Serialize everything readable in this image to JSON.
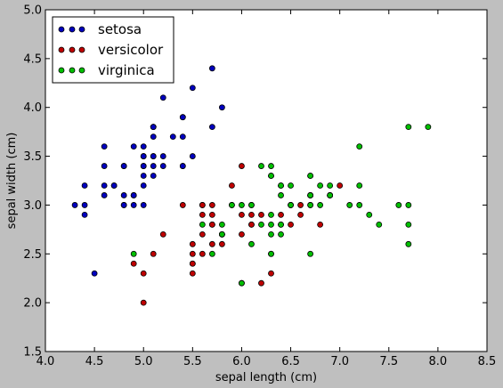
{
  "chart_data": {
    "type": "scatter",
    "title": "",
    "xlabel": "sepal length (cm)",
    "ylabel": "sepal width (cm)",
    "xlim": [
      4.0,
      8.5
    ],
    "ylim": [
      1.5,
      5.0
    ],
    "xticks": [
      4.0,
      4.5,
      5.0,
      5.5,
      6.0,
      6.5,
      7.0,
      7.5,
      8.0,
      8.5
    ],
    "yticks": [
      1.5,
      2.0,
      2.5,
      3.0,
      3.5,
      4.0,
      4.5,
      5.0
    ],
    "xtick_labels": [
      "4.0",
      "4.5",
      "5.0",
      "5.5",
      "6.0",
      "6.5",
      "7.0",
      "7.5",
      "8.0",
      "8.5"
    ],
    "ytick_labels": [
      "1.5",
      "2.0",
      "2.5",
      "3.0",
      "3.5",
      "4.0",
      "4.5",
      "5.0"
    ],
    "grid": false,
    "legend_position": "top-left",
    "series": [
      {
        "name": "setosa",
        "color": "#0000bf",
        "points": [
          [
            5.1,
            3.5
          ],
          [
            4.9,
            3.0
          ],
          [
            4.7,
            3.2
          ],
          [
            4.6,
            3.1
          ],
          [
            5.0,
            3.6
          ],
          [
            5.4,
            3.9
          ],
          [
            4.6,
            3.4
          ],
          [
            5.0,
            3.4
          ],
          [
            4.4,
            2.9
          ],
          [
            4.9,
            3.1
          ],
          [
            5.4,
            3.7
          ],
          [
            4.8,
            3.4
          ],
          [
            4.8,
            3.0
          ],
          [
            4.3,
            3.0
          ],
          [
            5.8,
            4.0
          ],
          [
            5.7,
            4.4
          ],
          [
            5.4,
            3.9
          ],
          [
            5.1,
            3.5
          ],
          [
            5.7,
            3.8
          ],
          [
            5.1,
            3.8
          ],
          [
            5.4,
            3.4
          ],
          [
            5.1,
            3.7
          ],
          [
            4.6,
            3.6
          ],
          [
            5.1,
            3.3
          ],
          [
            4.8,
            3.4
          ],
          [
            5.0,
            3.0
          ],
          [
            5.0,
            3.4
          ],
          [
            5.2,
            3.5
          ],
          [
            5.2,
            3.4
          ],
          [
            4.7,
            3.2
          ],
          [
            4.8,
            3.1
          ],
          [
            5.4,
            3.4
          ],
          [
            5.2,
            4.1
          ],
          [
            5.5,
            4.2
          ],
          [
            4.9,
            3.1
          ],
          [
            5.0,
            3.2
          ],
          [
            5.5,
            3.5
          ],
          [
            4.9,
            3.6
          ],
          [
            4.4,
            3.0
          ],
          [
            5.1,
            3.4
          ],
          [
            5.0,
            3.5
          ],
          [
            4.5,
            2.3
          ],
          [
            4.4,
            3.2
          ],
          [
            5.0,
            3.5
          ],
          [
            5.1,
            3.8
          ],
          [
            4.8,
            3.0
          ],
          [
            5.1,
            3.8
          ],
          [
            4.6,
            3.2
          ],
          [
            5.3,
            3.7
          ],
          [
            5.0,
            3.3
          ]
        ]
      },
      {
        "name": "versicolor",
        "color": "#bf0000",
        "points": [
          [
            7.0,
            3.2
          ],
          [
            6.4,
            3.2
          ],
          [
            6.9,
            3.1
          ],
          [
            5.5,
            2.3
          ],
          [
            6.5,
            2.8
          ],
          [
            5.7,
            2.8
          ],
          [
            6.3,
            3.3
          ],
          [
            4.9,
            2.4
          ],
          [
            6.6,
            2.9
          ],
          [
            5.2,
            2.7
          ],
          [
            5.0,
            2.0
          ],
          [
            5.9,
            3.0
          ],
          [
            6.0,
            2.2
          ],
          [
            6.1,
            2.9
          ],
          [
            5.6,
            2.9
          ],
          [
            6.7,
            3.1
          ],
          [
            5.6,
            3.0
          ],
          [
            5.8,
            2.7
          ],
          [
            6.2,
            2.2
          ],
          [
            5.6,
            2.5
          ],
          [
            5.9,
            3.2
          ],
          [
            6.1,
            2.8
          ],
          [
            6.3,
            2.5
          ],
          [
            6.1,
            2.8
          ],
          [
            6.4,
            2.9
          ],
          [
            6.6,
            3.0
          ],
          [
            6.8,
            2.8
          ],
          [
            6.7,
            3.0
          ],
          [
            6.0,
            2.9
          ],
          [
            5.7,
            2.6
          ],
          [
            5.5,
            2.4
          ],
          [
            5.5,
            2.4
          ],
          [
            5.8,
            2.7
          ],
          [
            6.0,
            2.7
          ],
          [
            5.4,
            3.0
          ],
          [
            6.0,
            3.4
          ],
          [
            6.7,
            3.1
          ],
          [
            6.3,
            2.3
          ],
          [
            5.6,
            3.0
          ],
          [
            5.5,
            2.5
          ],
          [
            5.5,
            2.6
          ],
          [
            6.1,
            3.0
          ],
          [
            5.8,
            2.6
          ],
          [
            5.0,
            2.3
          ],
          [
            5.6,
            2.7
          ],
          [
            5.7,
            3.0
          ],
          [
            5.7,
            2.9
          ],
          [
            6.2,
            2.9
          ],
          [
            5.1,
            2.5
          ],
          [
            5.7,
            2.8
          ]
        ]
      },
      {
        "name": "virginica",
        "color": "#00bf00",
        "points": [
          [
            6.3,
            3.3
          ],
          [
            5.8,
            2.7
          ],
          [
            7.1,
            3.0
          ],
          [
            6.3,
            2.9
          ],
          [
            6.5,
            3.0
          ],
          [
            7.6,
            3.0
          ],
          [
            4.9,
            2.5
          ],
          [
            7.3,
            2.9
          ],
          [
            6.7,
            2.5
          ],
          [
            7.2,
            3.6
          ],
          [
            6.5,
            3.2
          ],
          [
            6.4,
            2.7
          ],
          [
            6.8,
            3.0
          ],
          [
            5.7,
            2.5
          ],
          [
            5.8,
            2.8
          ],
          [
            6.4,
            3.2
          ],
          [
            6.5,
            3.0
          ],
          [
            7.7,
            3.8
          ],
          [
            7.7,
            2.6
          ],
          [
            6.0,
            2.2
          ],
          [
            6.9,
            3.2
          ],
          [
            5.6,
            2.8
          ],
          [
            7.7,
            2.8
          ],
          [
            6.3,
            2.7
          ],
          [
            6.7,
            3.3
          ],
          [
            7.2,
            3.2
          ],
          [
            6.2,
            2.8
          ],
          [
            6.1,
            3.0
          ],
          [
            6.4,
            2.8
          ],
          [
            7.2,
            3.0
          ],
          [
            7.4,
            2.8
          ],
          [
            7.9,
            3.8
          ],
          [
            6.4,
            2.8
          ],
          [
            6.3,
            2.8
          ],
          [
            6.1,
            2.6
          ],
          [
            7.7,
            3.0
          ],
          [
            6.3,
            3.4
          ],
          [
            6.4,
            3.1
          ],
          [
            6.0,
            3.0
          ],
          [
            6.9,
            3.1
          ],
          [
            6.7,
            3.1
          ],
          [
            6.9,
            3.1
          ],
          [
            5.8,
            2.7
          ],
          [
            6.8,
            3.2
          ],
          [
            6.7,
            3.3
          ],
          [
            6.7,
            3.0
          ],
          [
            6.3,
            2.5
          ],
          [
            6.5,
            3.0
          ],
          [
            6.2,
            3.4
          ],
          [
            5.9,
            3.0
          ]
        ]
      }
    ]
  }
}
